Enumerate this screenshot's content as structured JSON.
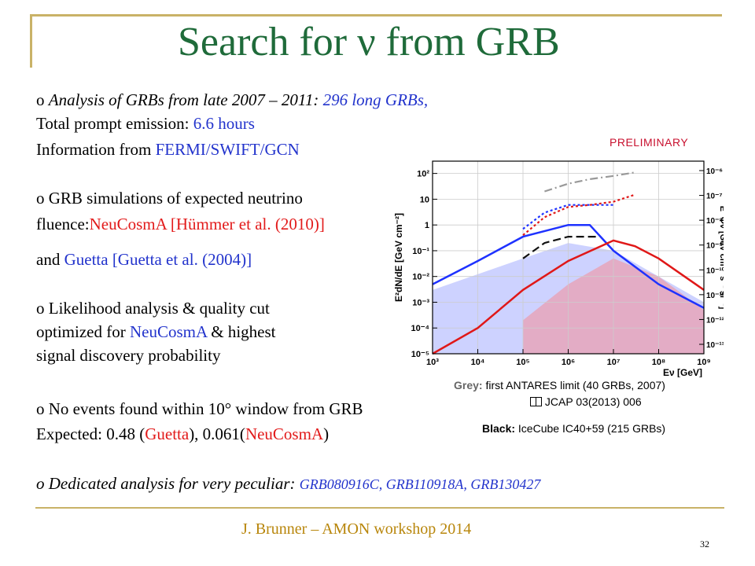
{
  "title": "Search for ν from GRB",
  "bullets": {
    "b1_prefix": "o ",
    "b1_text": "Analysis of GRBs from late 2007 – 2011: ",
    "b1_highlight": "296 long GRBs,",
    "b1_line2_text": "Total prompt emission: ",
    "b1_line2_value": "6.6 hours",
    "b1_line3_text": "Information from ",
    "b1_line3_value": "FERMI/SWIFT/GCN",
    "b2_line1": "o GRB simulations of expected neutrino",
    "b2_line2_text": "fluence:",
    "b2_line2_model": "NeuCosmA",
    "b2_line2_ref": " [Hümmer et al. (2010)]",
    "b2_line3_text": "and ",
    "b2_line3_model": "Guetta",
    "b2_line3_ref": " [Guetta et al. (2004)]",
    "b3_line1": "o Likelihood analysis & quality cut",
    "b3_line2_text": "optimized for ",
    "b3_line2_model": "NeuCosmA",
    "b3_line2_rest": " & highest",
    "b3_line3": "signal discovery probability",
    "b4_line1": "o No events found within 10° window from GRB",
    "b4_line2_text": "Expected: 0.48 (",
    "b4_line2_m1": "Guetta",
    "b4_line2_mid": "), 0.061(",
    "b4_line2_m2": "NeuCosmA",
    "b4_line2_end": ")",
    "b5_text": "o Dedicated analysis for very peculiar: ",
    "b5_grbs": "GRB080916C, GRB110918A, GRB130427"
  },
  "preliminary": "PRELIMINARY",
  "captions": {
    "grey_label": "Grey:",
    "grey_text": " first ANTARES limit (40 GRBs, 2007)",
    "ref_icon": "book-icon",
    "ref_text": " JCAP 03(2013) 006",
    "black_label": "Black:",
    "black_text": " IceCube IC40+59 (215 GRBs)"
  },
  "footer": "J. Brunner – AMON workshop 2014",
  "page_number": "32",
  "colors": {
    "title": "#1f6b3a",
    "highlight_blue": "#2233cc",
    "highlight_red": "#e21a1a",
    "footer": "#b8860b",
    "decoration": "#c9b267",
    "preliminary": "#c8102e",
    "grey_label": "#666666"
  },
  "chart_data": {
    "type": "line",
    "xscale": "log",
    "yscale": "log",
    "xlim": [
      1000,
      1000000000
    ],
    "ylim": [
      1e-05,
      300
    ],
    "y2lim": [
      1e-14,
      3e-06
    ],
    "grid": true,
    "xlabel": "Eν [GeV]",
    "ylabel": "E²dN/dE [GeV cm⁻²]",
    "y2label": "E² Φν [GeV cm⁻² s⁻¹ sr⁻¹]",
    "x_ticks": [
      "10³",
      "10⁴",
      "10⁵",
      "10⁶",
      "10⁷",
      "10⁸",
      "10⁹"
    ],
    "y_ticks": [
      "10⁻⁵",
      "10⁻⁴",
      "10⁻³",
      "10⁻²",
      "10⁻¹",
      "1",
      "10",
      "10²"
    ],
    "y2_ticks": [
      "10⁻¹³",
      "10⁻¹²",
      "10⁻¹¹",
      "10⁻¹⁰",
      "10⁻⁹",
      "10⁻⁸",
      "10⁻⁷",
      "10⁻⁶"
    ],
    "series": [
      {
        "color": "#1e32ff",
        "style": "solid",
        "x": [
          1000,
          10000,
          100000,
          1000000,
          3000000,
          10000000,
          100000000,
          1000000000
        ],
        "y": [
          0.005,
          0.04,
          0.35,
          1.0,
          1.0,
          0.1,
          0.005,
          0.0006
        ]
      },
      {
        "color": "#e01818",
        "style": "solid",
        "x": [
          1000,
          10000,
          100000,
          1000000,
          10000000,
          30000000,
          100000000,
          1000000000
        ],
        "y": [
          1e-05,
          0.0001,
          0.003,
          0.04,
          0.25,
          0.15,
          0.05,
          0.003
        ]
      },
      {
        "color": "#111111",
        "style": "dashed",
        "x": [
          100000,
          300000,
          1000000,
          5000000
        ],
        "y": [
          0.05,
          0.2,
          0.35,
          0.35
        ]
      },
      {
        "color": "#1e32ff",
        "style": "dotted",
        "x": [
          100000,
          300000,
          1000000,
          3000000,
          10000000
        ],
        "y": [
          0.7,
          3,
          6,
          6,
          6
        ]
      },
      {
        "color": "#e01818",
        "style": "dotted",
        "x": [
          100000,
          300000,
          1000000,
          3000000,
          10000000,
          30000000
        ],
        "y": [
          0.4,
          2,
          5,
          6,
          8,
          15
        ]
      },
      {
        "color": "#999999",
        "style": "dashdot",
        "x": [
          300000,
          1000000,
          3000000,
          10000000,
          30000000
        ],
        "y": [
          20,
          40,
          60,
          80,
          110
        ]
      }
    ],
    "bands": [
      {
        "color": "#6f7dff",
        "x": [
          1000,
          100000,
          1000000,
          10000000,
          100000000,
          1000000000
        ],
        "y_low": [
          1e-05,
          1e-05,
          1e-05,
          1e-05,
          1e-05,
          1e-05
        ],
        "y_high": [
          0.003,
          0.05,
          0.2,
          0.1,
          0.01,
          0.001
        ]
      },
      {
        "color": "#ff7f7f",
        "x": [
          100000,
          1000000,
          10000000,
          100000000,
          1000000000
        ],
        "y_low": [
          1e-05,
          1e-05,
          1e-05,
          1e-05,
          1e-05
        ],
        "y_high": [
          0.0002,
          0.005,
          0.05,
          0.01,
          0.0005
        ]
      }
    ]
  }
}
